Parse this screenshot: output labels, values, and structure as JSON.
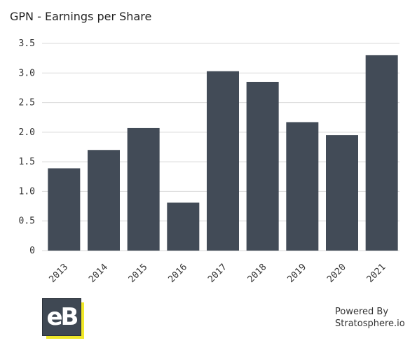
{
  "chart_data": {
    "type": "bar",
    "title": "GPN - Earnings per Share",
    "categories": [
      "2013",
      "2014",
      "2015",
      "2016",
      "2017",
      "2018",
      "2019",
      "2020",
      "2021"
    ],
    "values": [
      1.39,
      1.7,
      2.07,
      0.81,
      3.03,
      2.85,
      2.17,
      1.95,
      3.3
    ],
    "yticks": [
      "0",
      "0.5",
      "1.0",
      "1.5",
      "2.0",
      "2.5",
      "3.0",
      "3.5"
    ],
    "ylim": [
      0,
      3.5
    ],
    "grid": true,
    "bar_color": "#424b57"
  },
  "logo": {
    "text": "eB",
    "colors": {
      "face": "#3f4853",
      "accent": "#f0e82a"
    }
  },
  "footer": {
    "line1": "Powered By",
    "line2": "Stratosphere.io"
  }
}
